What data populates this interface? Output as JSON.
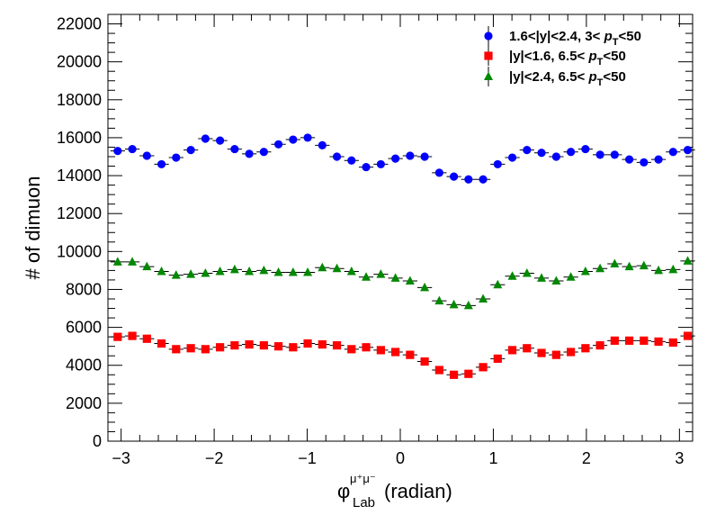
{
  "chart_data": {
    "type": "scatter",
    "xlabel": "(radian)",
    "xlabel_symbol": "φ",
    "xlabel_superscript": "μ⁺μ⁻",
    "xlabel_subscript": "Lab",
    "ylabel": "# of dimuon",
    "xlim": [
      -3.1416,
      3.1416
    ],
    "ylim": [
      0,
      22500
    ],
    "x_ticks": [
      -3,
      -2,
      -1,
      0,
      1,
      2,
      3
    ],
    "x_tick_labels": [
      "−3",
      "−2",
      "−1",
      "0",
      "1",
      "2",
      "3"
    ],
    "y_ticks": [
      0,
      2000,
      4000,
      6000,
      8000,
      10000,
      12000,
      14000,
      16000,
      18000,
      20000,
      22000
    ],
    "y_tick_labels": [
      "0",
      "2000",
      "4000",
      "6000",
      "8000",
      "10000",
      "12000",
      "14000",
      "16000",
      "18000",
      "20000",
      "22000"
    ],
    "grid": false,
    "legend_position": "top-right",
    "x": [
      -3.037,
      -2.88,
      -2.723,
      -2.566,
      -2.409,
      -2.251,
      -2.094,
      -1.937,
      -1.78,
      -1.623,
      -1.466,
      -1.309,
      -1.152,
      -0.995,
      -0.838,
      -0.681,
      -0.524,
      -0.367,
      -0.209,
      -0.052,
      0.105,
      0.262,
      0.419,
      0.576,
      0.733,
      0.89,
      1.047,
      1.204,
      1.361,
      1.518,
      1.676,
      1.833,
      1.99,
      2.147,
      2.304,
      2.461,
      2.618,
      2.775,
      2.932,
      3.089
    ],
    "series": [
      {
        "legend_parts": [
          "1.6<|y|<2.4, 3< ",
          "p",
          "T",
          "<50"
        ],
        "color": "#0000ff",
        "marker": "circle",
        "values": [
          15300,
          15400,
          15050,
          14600,
          14950,
          15350,
          15950,
          15850,
          15400,
          15150,
          15250,
          15650,
          15900,
          16000,
          15600,
          15000,
          14800,
          14450,
          14600,
          14900,
          15050,
          15000,
          14150,
          13950,
          13800,
          13800,
          14600,
          14950,
          15350,
          15200,
          15000,
          15250,
          15400,
          15100,
          15100,
          14850,
          14700,
          14850,
          15250,
          15350
        ]
      },
      {
        "legend_parts": [
          "|y|<1.6, 6.5< ",
          "p",
          "T",
          "<50"
        ],
        "color": "#ff0000",
        "marker": "square",
        "values": [
          5500,
          5550,
          5400,
          5150,
          4850,
          4900,
          4850,
          4950,
          5050,
          5100,
          5050,
          5000,
          4950,
          5150,
          5100,
          5050,
          4850,
          4950,
          4800,
          4700,
          4550,
          4200,
          3750,
          3500,
          3550,
          3900,
          4350,
          4800,
          4900,
          4650,
          4550,
          4700,
          4900,
          5050,
          5300,
          5300,
          5300,
          5250,
          5200,
          5550
        ]
      },
      {
        "legend_parts": [
          "|y|<2.4, 6.5< ",
          "p",
          "T",
          "<50"
        ],
        "color": "#008800",
        "marker": "triangle",
        "values": [
          9450,
          9450,
          9200,
          8950,
          8750,
          8800,
          8850,
          8950,
          9050,
          8950,
          9000,
          8900,
          8900,
          8900,
          9150,
          9100,
          8950,
          8650,
          8800,
          8600,
          8450,
          8100,
          7400,
          7200,
          7150,
          7500,
          8250,
          8700,
          8850,
          8600,
          8450,
          8650,
          8950,
          9100,
          9350,
          9200,
          9250,
          9000,
          9050,
          9500
        ]
      }
    ]
  }
}
